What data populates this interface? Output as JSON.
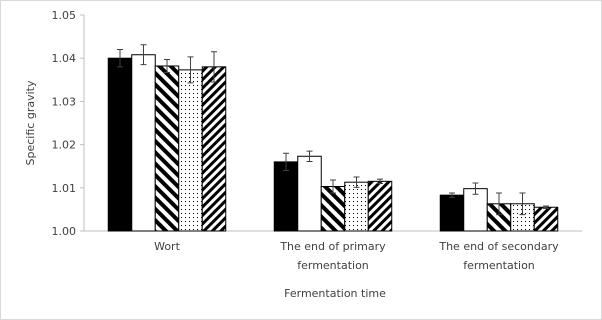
{
  "chart_data": {
    "type": "bar",
    "x_label": "Fermentation time",
    "y_label": "Specific gravity",
    "categories": [
      "Wort",
      "The end of primary fermentation",
      "The end of secondary fermentation"
    ],
    "series": [
      {
        "color": "#000000",
        "pattern": "solid",
        "values": [
          1.04,
          1.016,
          1.0083
        ],
        "errors": [
          0.002,
          0.002,
          0.0005
        ]
      },
      {
        "color": "#000000",
        "pattern": "none",
        "values": [
          1.0408,
          1.0173,
          1.0098
        ],
        "errors": [
          0.0023,
          0.0012,
          0.0013
        ]
      },
      {
        "color": "#000000",
        "pattern": "wide-stripes",
        "values": [
          1.0382,
          1.0103,
          1.0063
        ],
        "errors": [
          0.0015,
          0.0015,
          0.0025
        ]
      },
      {
        "color": "#000000",
        "pattern": "dots",
        "values": [
          1.0373,
          1.0113,
          1.0063
        ],
        "errors": [
          0.003,
          0.0012,
          0.0025
        ]
      },
      {
        "color": "#000000",
        "pattern": "stripes",
        "values": [
          1.038,
          1.0115,
          1.0055
        ],
        "errors": [
          0.0035,
          0.0005,
          0.0003
        ]
      }
    ],
    "ylim": [
      1,
      1.05
    ],
    "yticks": [
      {
        "value": 1,
        "label": "1.00"
      },
      1.01,
      1.02,
      1.03,
      1.04,
      1.05
    ],
    "grid": false
  }
}
